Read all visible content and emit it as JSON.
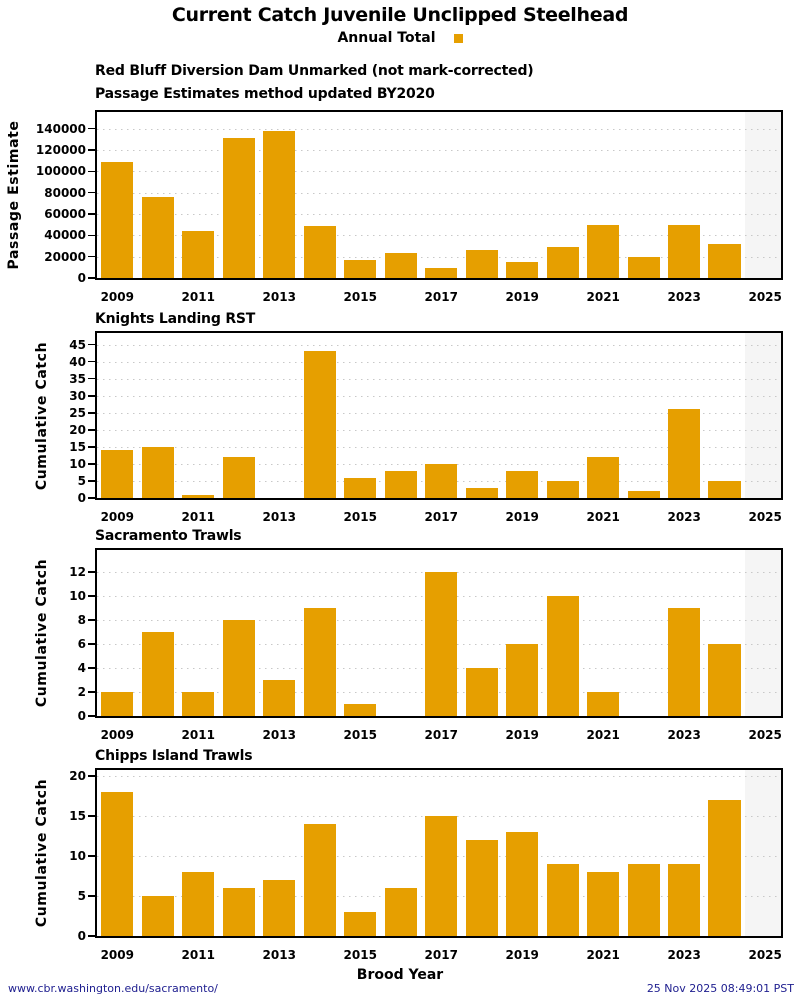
{
  "title": "Current Catch Juvenile Unclipped Steelhead",
  "legend": {
    "label": "Annual Total",
    "swatch_color": "#E69F00"
  },
  "xlabel": "Brood Year",
  "footer": {
    "left": "www.cbr.washington.edu/sacramento/",
    "right": "25 Nov 2025 08:49:01 PST"
  },
  "colors": {
    "bar": "#E69F00",
    "footer_text": "#202090",
    "shaded_band": "#F5F5F5",
    "grid": "#C8C8C8",
    "border": "#000000"
  },
  "chart_data": [
    {
      "type": "bar",
      "title_lines": [
        "Red Bluff Diversion Dam Unmarked (not mark-corrected)",
        "Passage Estimates method updated BY2020"
      ],
      "ylabel": "Passage Estimate",
      "categories": [
        2009,
        2010,
        2011,
        2012,
        2013,
        2014,
        2015,
        2016,
        2017,
        2018,
        2019,
        2020,
        2021,
        2022,
        2023,
        2024
      ],
      "values": [
        108500,
        76000,
        44000,
        131000,
        137500,
        48500,
        17000,
        23500,
        9500,
        26000,
        15000,
        29500,
        49500,
        20000,
        50000,
        32000
      ],
      "yticks": [
        0,
        20000,
        40000,
        60000,
        80000,
        100000,
        120000,
        140000
      ],
      "ylim": [
        0,
        157500
      ],
      "xlim": [
        2008.45,
        2025.44
      ],
      "xticks": [
        2009,
        2011,
        2013,
        2015,
        2017,
        2019,
        2021,
        2023,
        2025
      ],
      "bar_width": 0.8,
      "shaded_from": 2024.5,
      "grid": "horizontal-dotted",
      "legend_series": "Annual Total"
    },
    {
      "type": "bar",
      "title_lines": [
        "Knights Landing RST"
      ],
      "ylabel": "Cumulative Catch",
      "categories": [
        2009,
        2010,
        2011,
        2012,
        2013,
        2014,
        2015,
        2016,
        2017,
        2018,
        2019,
        2020,
        2021,
        2022,
        2023,
        2024
      ],
      "values": [
        14,
        15,
        1,
        12,
        null,
        43,
        6,
        8,
        10,
        3,
        8,
        5,
        12,
        2,
        26,
        5
      ],
      "yticks": [
        0,
        5,
        10,
        15,
        20,
        25,
        30,
        35,
        40,
        45
      ],
      "ylim": [
        0,
        49
      ],
      "xlim": [
        2008.45,
        2025.44
      ],
      "xticks": [
        2009,
        2011,
        2013,
        2015,
        2017,
        2019,
        2021,
        2023,
        2025
      ],
      "bar_width": 0.8,
      "shaded_from": 2024.5,
      "grid": "horizontal-dotted",
      "legend_series": "Annual Total"
    },
    {
      "type": "bar",
      "title_lines": [
        "Sacramento Trawls"
      ],
      "ylabel": "Cumulative Catch",
      "categories": [
        2009,
        2010,
        2011,
        2012,
        2013,
        2014,
        2015,
        2016,
        2017,
        2018,
        2019,
        2020,
        2021,
        2022,
        2023,
        2024
      ],
      "values": [
        2,
        7,
        2,
        8,
        3,
        9,
        1,
        null,
        12,
        4,
        6,
        10,
        2,
        null,
        9,
        6
      ],
      "yticks": [
        0,
        2,
        4,
        6,
        8,
        10,
        12
      ],
      "ylim": [
        0,
        14
      ],
      "xlim": [
        2008.45,
        2025.44
      ],
      "xticks": [
        2009,
        2011,
        2013,
        2015,
        2017,
        2019,
        2021,
        2023,
        2025
      ],
      "bar_width": 0.8,
      "shaded_from": 2024.5,
      "grid": "horizontal-dotted",
      "legend_series": "Annual Total"
    },
    {
      "type": "bar",
      "title_lines": [
        "Chipps Island Trawls"
      ],
      "ylabel": "Cumulative Catch",
      "categories": [
        2009,
        2010,
        2011,
        2012,
        2013,
        2014,
        2015,
        2016,
        2017,
        2018,
        2019,
        2020,
        2021,
        2022,
        2023,
        2024
      ],
      "values": [
        18,
        5,
        8,
        6,
        7,
        14,
        3,
        6,
        15,
        12,
        13,
        9,
        8,
        9,
        9,
        17
      ],
      "yticks": [
        0,
        5,
        10,
        15,
        20
      ],
      "ylim": [
        0,
        21
      ],
      "xlim": [
        2008.45,
        2025.44
      ],
      "xticks": [
        2009,
        2011,
        2013,
        2015,
        2017,
        2019,
        2021,
        2023,
        2025
      ],
      "bar_width": 0.8,
      "shaded_from": 2024.5,
      "grid": "horizontal-dotted",
      "legend_series": "Annual Total"
    }
  ]
}
